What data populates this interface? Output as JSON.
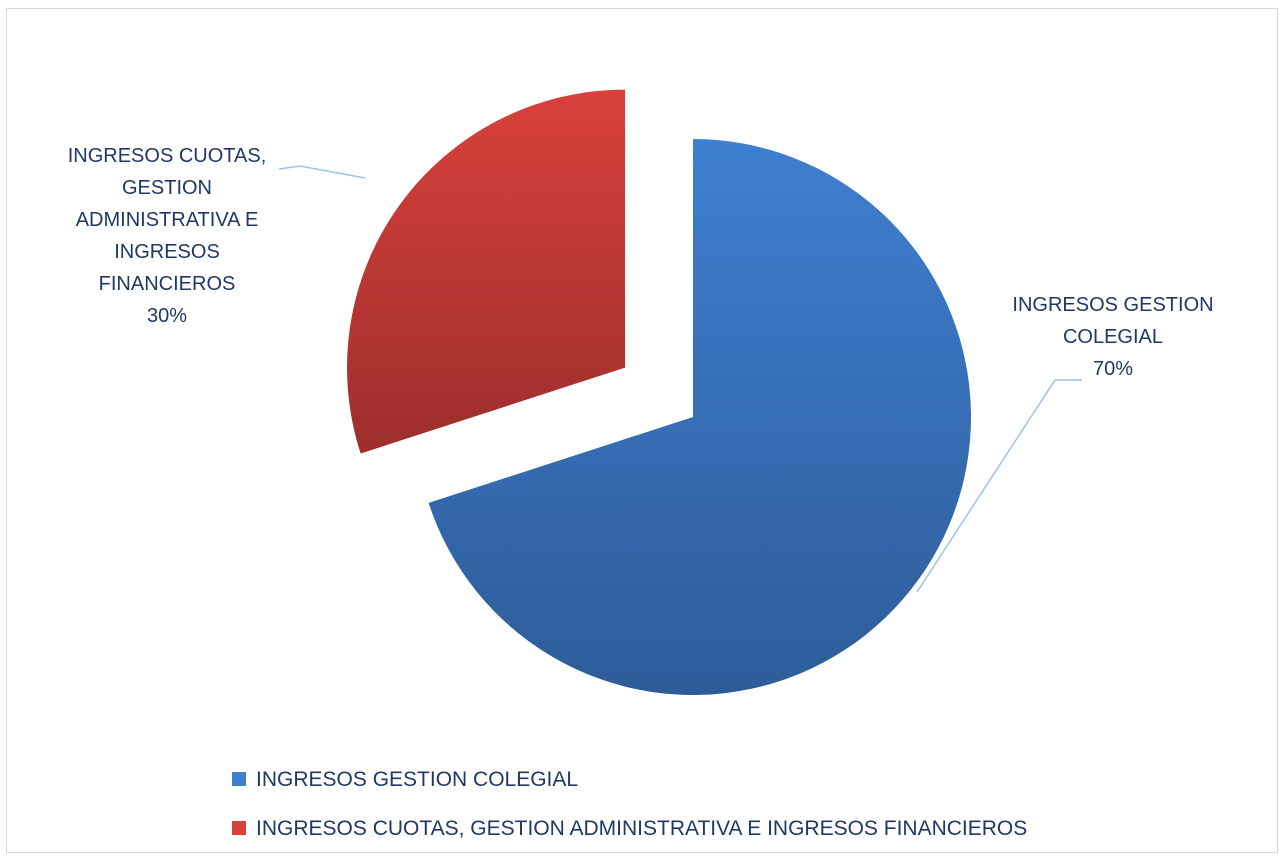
{
  "chart_data": {
    "type": "pie",
    "title": "",
    "slices": [
      {
        "category": "INGRESOS GESTION COLEGIAL",
        "value": 70,
        "label_lines": [
          "INGRESOS GESTION",
          "COLEGIAL",
          "70%"
        ],
        "color": "#3f7fd0",
        "color_dark": "#2e5c99",
        "exploded": false
      },
      {
        "category": "INGRESOS CUOTAS, GESTION ADMINISTRATIVA E INGRESOS FINANCIEROS",
        "value": 30,
        "label_lines": [
          "INGRESOS CUOTAS,",
          "GESTION",
          "ADMINISTRATIVA E",
          "INGRESOS",
          "FINANCIEROS",
          "30%"
        ],
        "color": "#d9413b",
        "color_dark": "#9c2e2c",
        "exploded": true
      }
    ],
    "legend": {
      "position": "bottom",
      "entries": [
        "INGRESOS GESTION COLEGIAL",
        "INGRESOS CUOTAS, GESTION ADMINISTRATIVA E INGRESOS FINANCIEROS"
      ]
    },
    "leader_line_color": "#9dc3e6"
  }
}
